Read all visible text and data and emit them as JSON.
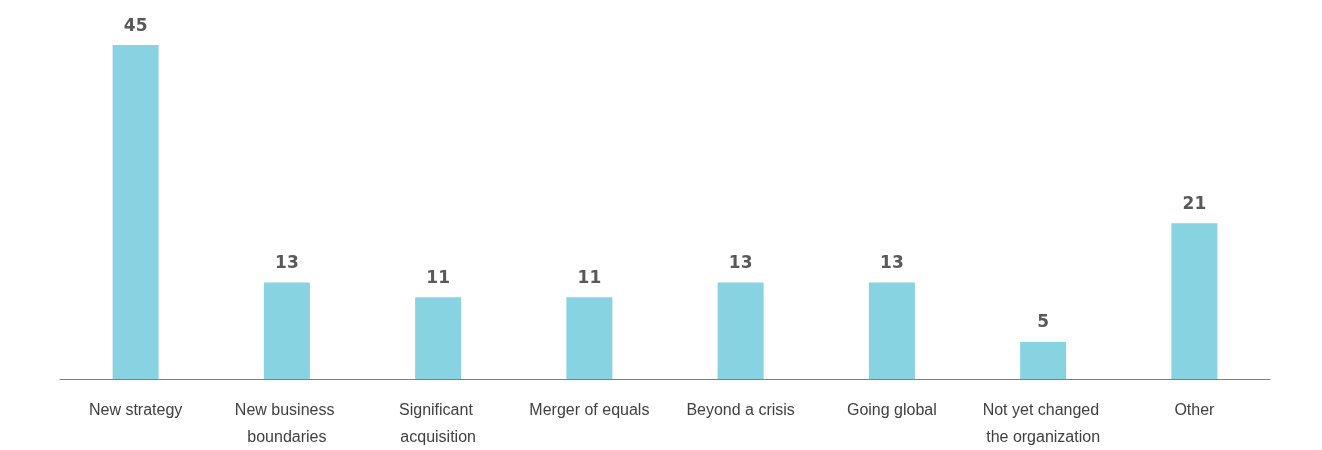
{
  "chart_data": {
    "type": "bar",
    "categories": [
      "New strategy",
      "New business boundaries",
      "Significant acquisition",
      "Merger of equals",
      "Beyond a crisis",
      "Going global",
      "Not yet changed the organization",
      "Other"
    ],
    "values": [
      45,
      13,
      11,
      11,
      13,
      13,
      5,
      21
    ],
    "color": "#87d3e2",
    "data_labels": true
  }
}
